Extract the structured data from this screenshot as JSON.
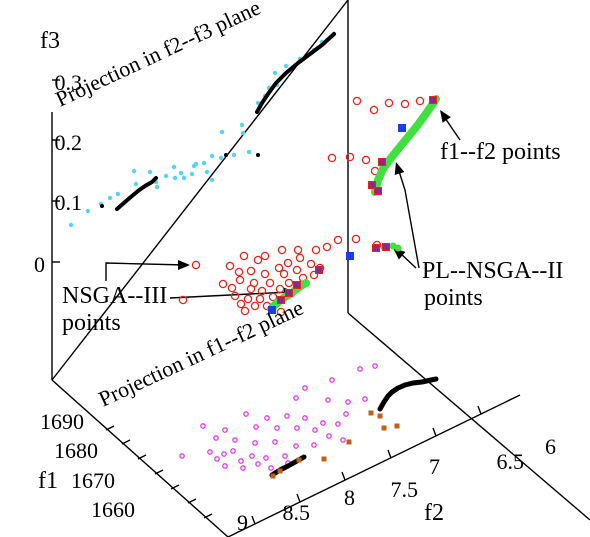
{
  "chart_data": {
    "type": "scatter",
    "axis_labels": {
      "f3": "f3",
      "f1": "f1",
      "f2": "f2"
    },
    "f3_ticks": [
      "0.3",
      "0.2",
      "0.1",
      "0"
    ],
    "f1_ticks": [
      "1690",
      "1680",
      "1670",
      "1660"
    ],
    "f2_ticks": [
      "9",
      "8.5",
      "8",
      "7.5",
      "7",
      "6.5",
      "6"
    ],
    "annotations": {
      "proj_f2f3": "Projection in f2--f3 plane",
      "proj_f1f2": "Projection in f1--f2 plane",
      "f1f2_points": "f1--f2 points",
      "nsga3_line1": "NSGA--III",
      "nsga3_line2": "points",
      "plnsga_line1": "PL--NSGA--II",
      "plnsga_line2": "points"
    },
    "colors": {
      "nsga3": "#e8241f",
      "plnsga": "#3fe03f",
      "blue": "#1a3fe0",
      "purple": "#8b2a86",
      "cyan": "#4fd6f0",
      "magenta": "#e23be6",
      "orange": "#c06018",
      "black": "#000000"
    },
    "series": {
      "nsga3_main": [
        [
          357,
          101
        ],
        [
          374,
          110
        ],
        [
          389,
          103
        ],
        [
          405,
          104
        ],
        [
          420,
          101
        ],
        [
          332,
          158
        ],
        [
          350,
          157
        ],
        [
          366,
          160
        ],
        [
          375,
          171
        ],
        [
          338,
          240
        ],
        [
          356,
          239
        ],
        [
          377,
          245
        ],
        [
          327,
          247
        ],
        [
          316,
          250
        ],
        [
          298,
          250
        ],
        [
          282,
          250
        ],
        [
          265,
          256
        ],
        [
          300,
          258
        ],
        [
          288,
          263
        ],
        [
          279,
          268
        ],
        [
          297,
          270
        ],
        [
          311,
          264
        ],
        [
          320,
          268
        ],
        [
          258,
          260
        ],
        [
          244,
          256
        ],
        [
          230,
          266
        ],
        [
          239,
          272
        ],
        [
          251,
          271
        ],
        [
          265,
          274
        ],
        [
          284,
          274
        ],
        [
          303,
          278
        ],
        [
          314,
          275
        ],
        [
          240,
          280
        ],
        [
          254,
          283
        ],
        [
          270,
          283
        ],
        [
          289,
          283
        ],
        [
          223,
          284
        ],
        [
          232,
          288
        ],
        [
          251,
          289
        ],
        [
          262,
          291
        ],
        [
          280,
          289
        ],
        [
          235,
          296
        ],
        [
          248,
          299
        ],
        [
          260,
          299
        ],
        [
          273,
          297
        ],
        [
          241,
          304
        ],
        [
          255,
          306
        ],
        [
          267,
          306
        ],
        [
          245,
          311
        ],
        [
          281,
          312
        ],
        [
          196,
          265
        ],
        [
          183,
          300
        ]
      ],
      "plnsga_top_curve": [
        [
          375,
          192
        ],
        [
          378,
          180
        ],
        [
          383,
          169
        ],
        [
          391,
          158
        ],
        [
          399,
          148
        ],
        [
          408,
          137
        ],
        [
          417,
          126
        ],
        [
          425,
          115
        ],
        [
          432,
          105
        ],
        [
          436,
          99
        ]
      ],
      "plnsga_low_curve": [
        [
          271,
          309
        ],
        [
          278,
          302
        ],
        [
          285,
          297
        ],
        [
          292,
          293
        ],
        [
          299,
          287
        ],
        [
          306,
          283
        ]
      ],
      "plnsga_right": [
        [
          384,
          247
        ],
        [
          393,
          246
        ],
        [
          398,
          248
        ]
      ],
      "blue_squares": [
        [
          402,
          128
        ],
        [
          350,
          256
        ],
        [
          272,
          310
        ]
      ],
      "purple_squares": [
        [
          433,
          100
        ],
        [
          382,
          162
        ],
        [
          372,
          185
        ],
        [
          378,
          191
        ],
        [
          376,
          248
        ],
        [
          386,
          247
        ],
        [
          319,
          270
        ],
        [
          297,
          285
        ],
        [
          289,
          293
        ],
        [
          281,
          300
        ]
      ],
      "cyan_upper": [
        [
          277,
          85
        ],
        [
          269,
          88
        ],
        [
          265,
          96
        ],
        [
          258,
          103
        ],
        [
          275,
          73
        ],
        [
          286,
          66
        ],
        [
          300,
          59
        ],
        [
          314,
          50
        ],
        [
          322,
          42
        ],
        [
          334,
          34
        ],
        [
          242,
          125
        ],
        [
          243,
          133
        ],
        [
          222,
          132
        ],
        [
          212,
          156
        ],
        [
          204,
          163
        ],
        [
          194,
          166
        ],
        [
          181,
          173
        ],
        [
          166,
          176
        ],
        [
          156,
          182
        ],
        [
          136,
          184
        ],
        [
          118,
          194
        ],
        [
          110,
          198
        ],
        [
          101,
          204
        ],
        [
          88,
          211
        ],
        [
          71,
          225
        ],
        [
          134,
          171
        ],
        [
          150,
          172
        ],
        [
          174,
          167
        ],
        [
          196,
          164
        ],
        [
          221,
          158
        ],
        [
          234,
          155
        ],
        [
          249,
          152
        ],
        [
          212,
          180
        ],
        [
          207,
          172
        ],
        [
          192,
          174
        ],
        [
          184,
          178
        ],
        [
          175,
          178
        ],
        [
          157,
          187
        ]
      ],
      "black_upper_curve": [
        [
          257,
          112
        ],
        [
          262,
          103
        ],
        [
          268,
          94
        ],
        [
          276,
          83
        ],
        [
          286,
          73
        ],
        [
          298,
          63
        ],
        [
          310,
          54
        ],
        [
          322,
          45
        ],
        [
          334,
          34
        ]
      ],
      "black_mid_curve": [
        [
          117,
          209
        ],
        [
          125,
          202
        ],
        [
          132,
          196
        ],
        [
          138,
          191
        ],
        [
          145,
          186
        ],
        [
          152,
          182
        ],
        [
          156,
          178
        ]
      ],
      "black_mid_pts": [
        [
          258,
          155
        ],
        [
          226,
          155
        ],
        [
          102,
          206
        ]
      ],
      "magenta_floor": [
        [
          360,
          369
        ],
        [
          375,
          366
        ],
        [
          332,
          380
        ],
        [
          305,
          388
        ],
        [
          296,
          398
        ],
        [
          328,
          400
        ],
        [
          348,
          402
        ],
        [
          365,
          399
        ],
        [
          346,
          414
        ],
        [
          338,
          424
        ],
        [
          323,
          423
        ],
        [
          305,
          418
        ],
        [
          287,
          416
        ],
        [
          267,
          418
        ],
        [
          246,
          414
        ],
        [
          315,
          430
        ],
        [
          297,
          428
        ],
        [
          277,
          428
        ],
        [
          256,
          427
        ],
        [
          225,
          430
        ],
        [
          203,
          426
        ],
        [
          216,
          438
        ],
        [
          235,
          440
        ],
        [
          255,
          443
        ],
        [
          275,
          442
        ],
        [
          296,
          446
        ],
        [
          314,
          445
        ],
        [
          233,
          451
        ],
        [
          252,
          456
        ],
        [
          266,
          458
        ],
        [
          285,
          456
        ],
        [
          224,
          454
        ],
        [
          241,
          461
        ],
        [
          258,
          464
        ],
        [
          271,
          468
        ],
        [
          288,
          463
        ],
        [
          182,
          456
        ],
        [
          210,
          452
        ],
        [
          329,
          436
        ],
        [
          343,
          440
        ],
        [
          217,
          459
        ],
        [
          225,
          466
        ],
        [
          243,
          468
        ]
      ],
      "black_floor_curve": [
        [
          380,
          409
        ],
        [
          384,
          402
        ],
        [
          388,
          396
        ],
        [
          392,
          392
        ],
        [
          398,
          388
        ],
        [
          405,
          385
        ],
        [
          413,
          383
        ],
        [
          422,
          382
        ],
        [
          431,
          380
        ],
        [
          436,
          379
        ]
      ],
      "black_floor_low": [
        [
          272,
          475
        ],
        [
          280,
          470
        ],
        [
          288,
          466
        ],
        [
          297,
          461
        ],
        [
          304,
          457
        ]
      ],
      "orange_floor": [
        [
          380,
          416
        ],
        [
          371,
          413
        ],
        [
          384,
          428
        ],
        [
          397,
          426
        ],
        [
          349,
          442
        ],
        [
          324,
          459
        ],
        [
          299,
          460
        ],
        [
          280,
          471
        ],
        [
          273,
          476
        ]
      ]
    }
  }
}
